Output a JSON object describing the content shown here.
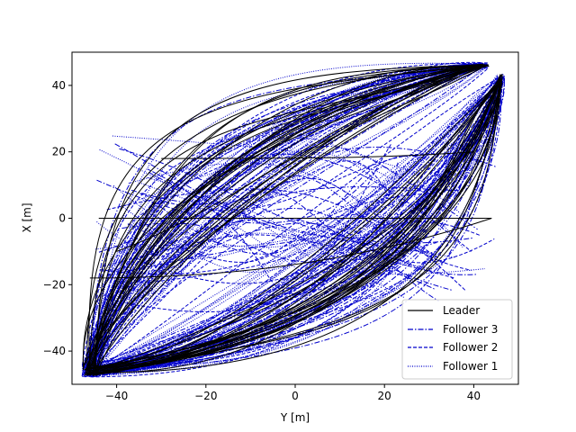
{
  "chart_data": {
    "type": "line",
    "xlabel": "Y [m]",
    "ylabel": "X [m]",
    "xlim": [
      -50,
      50
    ],
    "ylim": [
      -50,
      50
    ],
    "x_ticks": [
      -40,
      -20,
      0,
      20,
      40
    ],
    "y_ticks": [
      -40,
      -20,
      0,
      20,
      40
    ],
    "grid": false,
    "legend_position": "lower-right",
    "series": [
      {
        "name": "Leader",
        "color": "#000000",
        "style": "solid"
      },
      {
        "name": "Follower 3",
        "color": "#0000cc",
        "style": "dashdot"
      },
      {
        "name": "Follower 2",
        "color": "#0000cc",
        "style": "dashed"
      },
      {
        "name": "Follower 1",
        "color": "#0000cc",
        "style": "dotted"
      }
    ],
    "corner_points": {
      "bottom_left": [
        -46,
        -46
      ],
      "top_right_a": [
        42,
        46
      ],
      "top_right_b": [
        46,
        42
      ]
    },
    "trajectory_families": [
      {
        "from": [
          -46,
          -46
        ],
        "to": [
          42,
          46
        ],
        "description": "upper-left sweep"
      },
      {
        "from": [
          -46,
          -46
        ],
        "to": [
          46,
          42
        ],
        "description": "lower-right sweep"
      }
    ]
  }
}
